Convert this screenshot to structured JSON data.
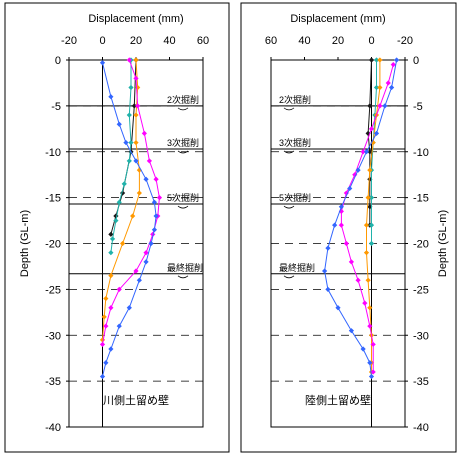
{
  "chart_data": [
    {
      "type": "line",
      "title": "",
      "xlabel": "Displacement (mm)",
      "ylabel": "Depth (GL-m)",
      "xlim": [
        -20,
        60
      ],
      "ylim": [
        -40,
        0
      ],
      "xticks": [
        -20,
        0,
        20,
        40,
        60
      ],
      "yticks": [
        0,
        -5,
        -10,
        -15,
        -20,
        -25,
        -30,
        -35,
        -40
      ],
      "wall_label": "川側土留め壁",
      "excavation_stages": [
        {
          "label": "2次掘削",
          "depth": -5
        },
        {
          "label": "3次掘削",
          "depth": -9.7
        },
        {
          "label": "5次掘削",
          "depth": -15.7
        },
        {
          "label": "最終掘削",
          "depth": -23.3
        }
      ],
      "dashed_grid": [
        -5,
        -10,
        -15,
        -20,
        -25,
        -30,
        -35
      ],
      "series": [
        {
          "color": "#1a1a1a",
          "marker": "diamond",
          "points": [
            [
              20,
              0
            ],
            [
              19,
              -5
            ],
            [
              17,
              -10
            ],
            [
              12,
              -14.5
            ],
            [
              8,
              -17
            ],
            [
              5,
              -19
            ]
          ]
        },
        {
          "color": "#20b2aa",
          "marker": "diamond",
          "points": [
            [
              17,
              0
            ],
            [
              17,
              -3
            ],
            [
              16,
              -6
            ],
            [
              17,
              -9
            ],
            [
              16,
              -11
            ],
            [
              13,
              -13.5
            ],
            [
              10,
              -15.5
            ],
            [
              8,
              -17.5
            ],
            [
              6,
              -19.5
            ],
            [
              5,
              -21
            ]
          ]
        },
        {
          "color": "#ff9900",
          "marker": "diamond",
          "points": [
            [
              20,
              0
            ],
            [
              21,
              -3
            ],
            [
              20,
              -6
            ],
            [
              20,
              -9
            ],
            [
              22,
              -12
            ],
            [
              22,
              -14.5
            ],
            [
              18,
              -17
            ],
            [
              12,
              -20
            ],
            [
              5,
              -23.5
            ],
            [
              2,
              -26
            ],
            [
              1,
              -28
            ],
            [
              0,
              -30.5
            ]
          ]
        },
        {
          "color": "#ff00ff",
          "marker": "diamond",
          "points": [
            [
              16,
              0
            ],
            [
              20,
              -2
            ],
            [
              21,
              -5
            ],
            [
              25,
              -8
            ],
            [
              28,
              -11
            ],
            [
              32,
              -13
            ],
            [
              34,
              -15
            ],
            [
              33,
              -17
            ],
            [
              30,
              -19
            ],
            [
              26,
              -21
            ],
            [
              20,
              -23
            ],
            [
              10,
              -25
            ],
            [
              5,
              -27
            ],
            [
              2,
              -29
            ],
            [
              0,
              -31
            ]
          ]
        },
        {
          "color": "#3366ff",
          "marker": "diamond",
          "points": [
            [
              0,
              -0.3
            ],
            [
              5,
              -4
            ],
            [
              10,
              -7
            ],
            [
              14,
              -9
            ],
            [
              20,
              -11
            ],
            [
              26,
              -13
            ],
            [
              31,
              -15.5
            ],
            [
              32,
              -17
            ],
            [
              31,
              -18.5
            ],
            [
              29,
              -20
            ],
            [
              26,
              -22
            ],
            [
              22,
              -24
            ],
            [
              16,
              -27
            ],
            [
              10,
              -29
            ],
            [
              5,
              -31.5
            ],
            [
              2,
              -33
            ],
            [
              0,
              -34.5
            ]
          ]
        }
      ]
    },
    {
      "type": "line",
      "title": "",
      "xlabel": "Displacement (mm)",
      "ylabel": "Depth (GL-m)",
      "xlim": [
        -20,
        60
      ],
      "ylim": [
        -40,
        0
      ],
      "xaxis_reversed": true,
      "xticks": [
        -20,
        0,
        20,
        40,
        60
      ],
      "yticks": [
        0,
        -5,
        -10,
        -15,
        -20,
        -25,
        -30,
        -35,
        -40
      ],
      "wall_label": "陸側土留め壁",
      "excavation_stages": [
        {
          "label": "2次掘削",
          "depth": -5
        },
        {
          "label": "3次掘削",
          "depth": -9.7
        },
        {
          "label": "5次掘削",
          "depth": -15.7
        },
        {
          "label": "最終掘削",
          "depth": -23.3
        }
      ],
      "dashed_grid": [
        -5,
        -10,
        -15,
        -20,
        -25,
        -30,
        -35
      ],
      "series": [
        {
          "color": "#1a1a1a",
          "marker": "diamond",
          "points": [
            [
              0,
              0
            ],
            [
              1,
              -5
            ],
            [
              2,
              -8
            ],
            [
              1,
              -10
            ],
            [
              1,
              -13
            ],
            [
              1,
              -16
            ],
            [
              1,
              -18
            ]
          ]
        },
        {
          "color": "#20b2aa",
          "marker": "diamond",
          "points": [
            [
              -3,
              0
            ],
            [
              -3,
              -3
            ],
            [
              -2,
              -6
            ],
            [
              -1,
              -9
            ],
            [
              0,
              -12
            ],
            [
              0,
              -15
            ],
            [
              0,
              -18
            ],
            [
              0,
              -20
            ]
          ]
        },
        {
          "color": "#ff9900",
          "marker": "diamond",
          "points": [
            [
              -5,
              0
            ],
            [
              -5,
              -3
            ],
            [
              -3,
              -6
            ],
            [
              -1,
              -9
            ],
            [
              1,
              -12
            ],
            [
              2,
              -15
            ],
            [
              3,
              -18
            ],
            [
              3,
              -21
            ],
            [
              2,
              -24
            ],
            [
              1,
              -27
            ],
            [
              0,
              -30
            ],
            [
              0,
              -33
            ],
            [
              0,
              -34
            ]
          ]
        },
        {
          "color": "#ff00ff",
          "marker": "diamond",
          "points": [
            [
              -13,
              -0.5
            ],
            [
              -10,
              -2.5
            ],
            [
              -5,
              -5
            ],
            [
              0,
              -7.5
            ],
            [
              5,
              -10
            ],
            [
              10,
              -12.5
            ],
            [
              15,
              -14.5
            ],
            [
              18,
              -16.5
            ],
            [
              18,
              -18
            ],
            [
              15,
              -20
            ],
            [
              12,
              -22
            ],
            [
              8,
              -24
            ],
            [
              4,
              -26.5
            ],
            [
              1,
              -29
            ],
            [
              -1,
              -31
            ],
            [
              -1,
              -34
            ]
          ]
        },
        {
          "color": "#3366ff",
          "marker": "diamond",
          "points": [
            [
              -15,
              0
            ],
            [
              -12,
              -3
            ],
            [
              -8,
              -5
            ],
            [
              -3,
              -8
            ],
            [
              3,
              -10
            ],
            [
              8,
              -12
            ],
            [
              13,
              -14
            ],
            [
              18,
              -16
            ],
            [
              22,
              -18
            ],
            [
              26,
              -20.5
            ],
            [
              28,
              -23
            ],
            [
              26,
              -25
            ],
            [
              20,
              -27
            ],
            [
              12,
              -29.5
            ],
            [
              5,
              -31.5
            ],
            [
              1,
              -33
            ],
            [
              0,
              -34.5
            ]
          ]
        }
      ]
    }
  ]
}
